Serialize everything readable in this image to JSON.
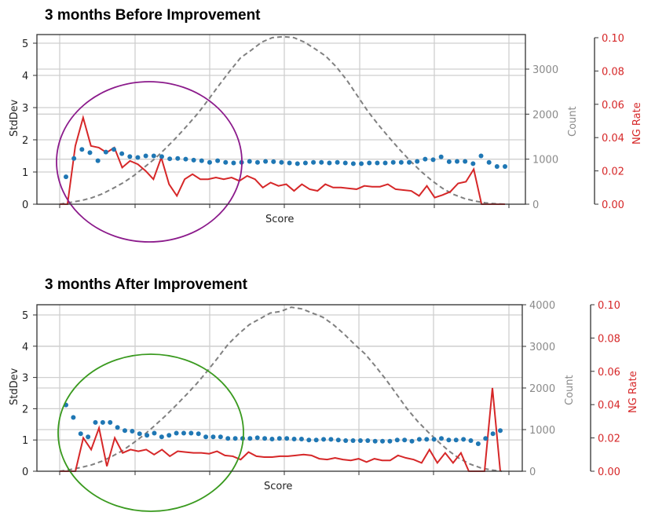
{
  "chart_data": [
    {
      "type": "line",
      "title": "3 months Before Improvement",
      "xlabel": "Score",
      "ylabel": "StdDev",
      "ylabel_right": "Count",
      "ylabel_right2": "NG Rate",
      "ylim": [
        0,
        5.2
      ],
      "ylim_count": [
        0,
        3700
      ],
      "ylim_ng": [
        0,
        0.1
      ],
      "yticks": [
        "0",
        "1",
        "2",
        "3",
        "4",
        "5"
      ],
      "yticks_count": [
        "0",
        "1000",
        "2000",
        "3000"
      ],
      "yticks_ng": [
        "0.00",
        "0.02",
        "0.04",
        "0.06",
        "0.08",
        "0.10"
      ],
      "grid": true,
      "annotation": {
        "shape": "ellipse",
        "color": "#8b1a8b"
      },
      "series": [
        {
          "name": "StdDev",
          "style": "scatter",
          "color": "#1f77b4",
          "values": [
            0.85,
            1.42,
            1.7,
            1.6,
            1.35,
            1.62,
            1.7,
            1.57,
            1.48,
            1.45,
            1.5,
            1.5,
            1.48,
            1.41,
            1.42,
            1.4,
            1.37,
            1.35,
            1.3,
            1.35,
            1.3,
            1.28,
            1.3,
            1.33,
            1.3,
            1.33,
            1.32,
            1.3,
            1.28,
            1.26,
            1.28,
            1.3,
            1.3,
            1.28,
            1.3,
            1.28,
            1.26,
            1.26,
            1.28,
            1.28,
            1.28,
            1.3,
            1.3,
            1.3,
            1.33,
            1.4,
            1.38,
            1.47,
            1.32,
            1.33,
            1.33,
            1.26,
            1.5,
            1.3,
            1.17,
            1.17
          ]
        },
        {
          "name": "NG Rate",
          "style": "line",
          "color": "#d62728",
          "values": [
            0.0,
            0.0,
            0.035,
            0.052,
            0.035,
            0.034,
            0.031,
            0.034,
            0.022,
            0.026,
            0.024,
            0.02,
            0.015,
            0.028,
            0.012,
            0.005,
            0.015,
            0.018,
            0.015,
            0.015,
            0.016,
            0.015,
            0.016,
            0.014,
            0.017,
            0.015,
            0.01,
            0.013,
            0.011,
            0.012,
            0.008,
            0.012,
            0.009,
            0.008,
            0.012,
            0.01,
            0.01,
            0.0095,
            0.009,
            0.011,
            0.0105,
            0.0105,
            0.012,
            0.009,
            0.0085,
            0.008,
            0.005,
            0.011,
            0.004,
            0.0055,
            0.0075,
            0.0125,
            0.0135,
            0.021,
            0.0,
            0.0,
            0.0,
            0.0
          ]
        },
        {
          "name": "Count",
          "style": "dashed",
          "color": "#808080",
          "values": [
            0,
            40,
            80,
            140,
            230,
            350,
            480,
            640,
            830,
            1020,
            1250,
            1490,
            1750,
            2020,
            2330,
            2650,
            2960,
            3250,
            3420,
            3600,
            3700,
            3720,
            3700,
            3600,
            3450,
            3290,
            3050,
            2750,
            2400,
            2050,
            1750,
            1470,
            1200,
            950,
            720,
            520,
            350,
            220,
            130,
            70,
            30,
            10,
            0
          ]
        }
      ]
    },
    {
      "type": "line",
      "title": "3 months After Improvement",
      "xlabel": "Score",
      "ylabel": "StdDev",
      "ylabel_right": "Count",
      "ylabel_right2": "NG Rate",
      "ylim": [
        0,
        5.3
      ],
      "ylim_count": [
        0,
        4000
      ],
      "ylim_ng": [
        0,
        0.1
      ],
      "yticks": [
        "0",
        "1",
        "2",
        "3",
        "4",
        "5"
      ],
      "yticks_count": [
        "0",
        "1000",
        "2000",
        "3000",
        "4000"
      ],
      "yticks_ng": [
        "0.00",
        "0.02",
        "0.04",
        "0.06",
        "0.08",
        "0.10"
      ],
      "grid": true,
      "annotation": {
        "shape": "ellipse",
        "color": "#3a9a1f"
      },
      "series": [
        {
          "name": "StdDev",
          "style": "scatter",
          "color": "#1f77b4",
          "values": [
            2.12,
            1.72,
            1.2,
            1.1,
            1.56,
            1.56,
            1.56,
            1.4,
            1.3,
            1.28,
            1.2,
            1.15,
            1.22,
            1.1,
            1.15,
            1.22,
            1.22,
            1.22,
            1.2,
            1.1,
            1.1,
            1.1,
            1.05,
            1.05,
            1.05,
            1.05,
            1.07,
            1.05,
            1.03,
            1.05,
            1.05,
            1.03,
            1.03,
            1.0,
            1.0,
            1.02,
            1.02,
            1.0,
            0.98,
            0.98,
            0.98,
            0.98,
            0.96,
            0.96,
            0.96,
            1.0,
            1.0,
            0.96,
            1.02,
            1.02,
            1.02,
            1.05,
            1.0,
            1.0,
            1.02,
            0.98,
            0.88,
            1.05,
            1.2,
            1.3
          ]
        },
        {
          "name": "NG Rate",
          "style": "line",
          "color": "#d62728",
          "values": [
            0.0,
            0.0,
            0.0,
            0.02,
            0.013,
            0.026,
            0.003,
            0.02,
            0.011,
            0.013,
            0.012,
            0.013,
            0.01,
            0.013,
            0.009,
            0.012,
            0.0115,
            0.011,
            0.011,
            0.0105,
            0.012,
            0.0095,
            0.009,
            0.007,
            0.0115,
            0.009,
            0.0085,
            0.0085,
            0.009,
            0.009,
            0.0095,
            0.01,
            0.0095,
            0.0075,
            0.007,
            0.008,
            0.007,
            0.0065,
            0.0075,
            0.0055,
            0.0075,
            0.0065,
            0.0065,
            0.0095,
            0.008,
            0.007,
            0.005,
            0.013,
            0.005,
            0.011,
            0.005,
            0.011,
            0.0,
            0.0,
            0.0,
            0.05,
            0.0
          ]
        },
        {
          "name": "Count",
          "style": "dashed",
          "color": "#808080",
          "values": [
            0,
            40,
            90,
            150,
            240,
            360,
            500,
            680,
            870,
            1090,
            1320,
            1570,
            1830,
            2100,
            2400,
            2720,
            3050,
            3300,
            3520,
            3660,
            3800,
            3840,
            3940,
            3900,
            3800,
            3700,
            3520,
            3300,
            3050,
            2820,
            2520,
            2200,
            1850,
            1500,
            1200,
            940,
            700,
            480,
            300,
            170,
            80,
            30,
            0
          ]
        }
      ]
    }
  ]
}
